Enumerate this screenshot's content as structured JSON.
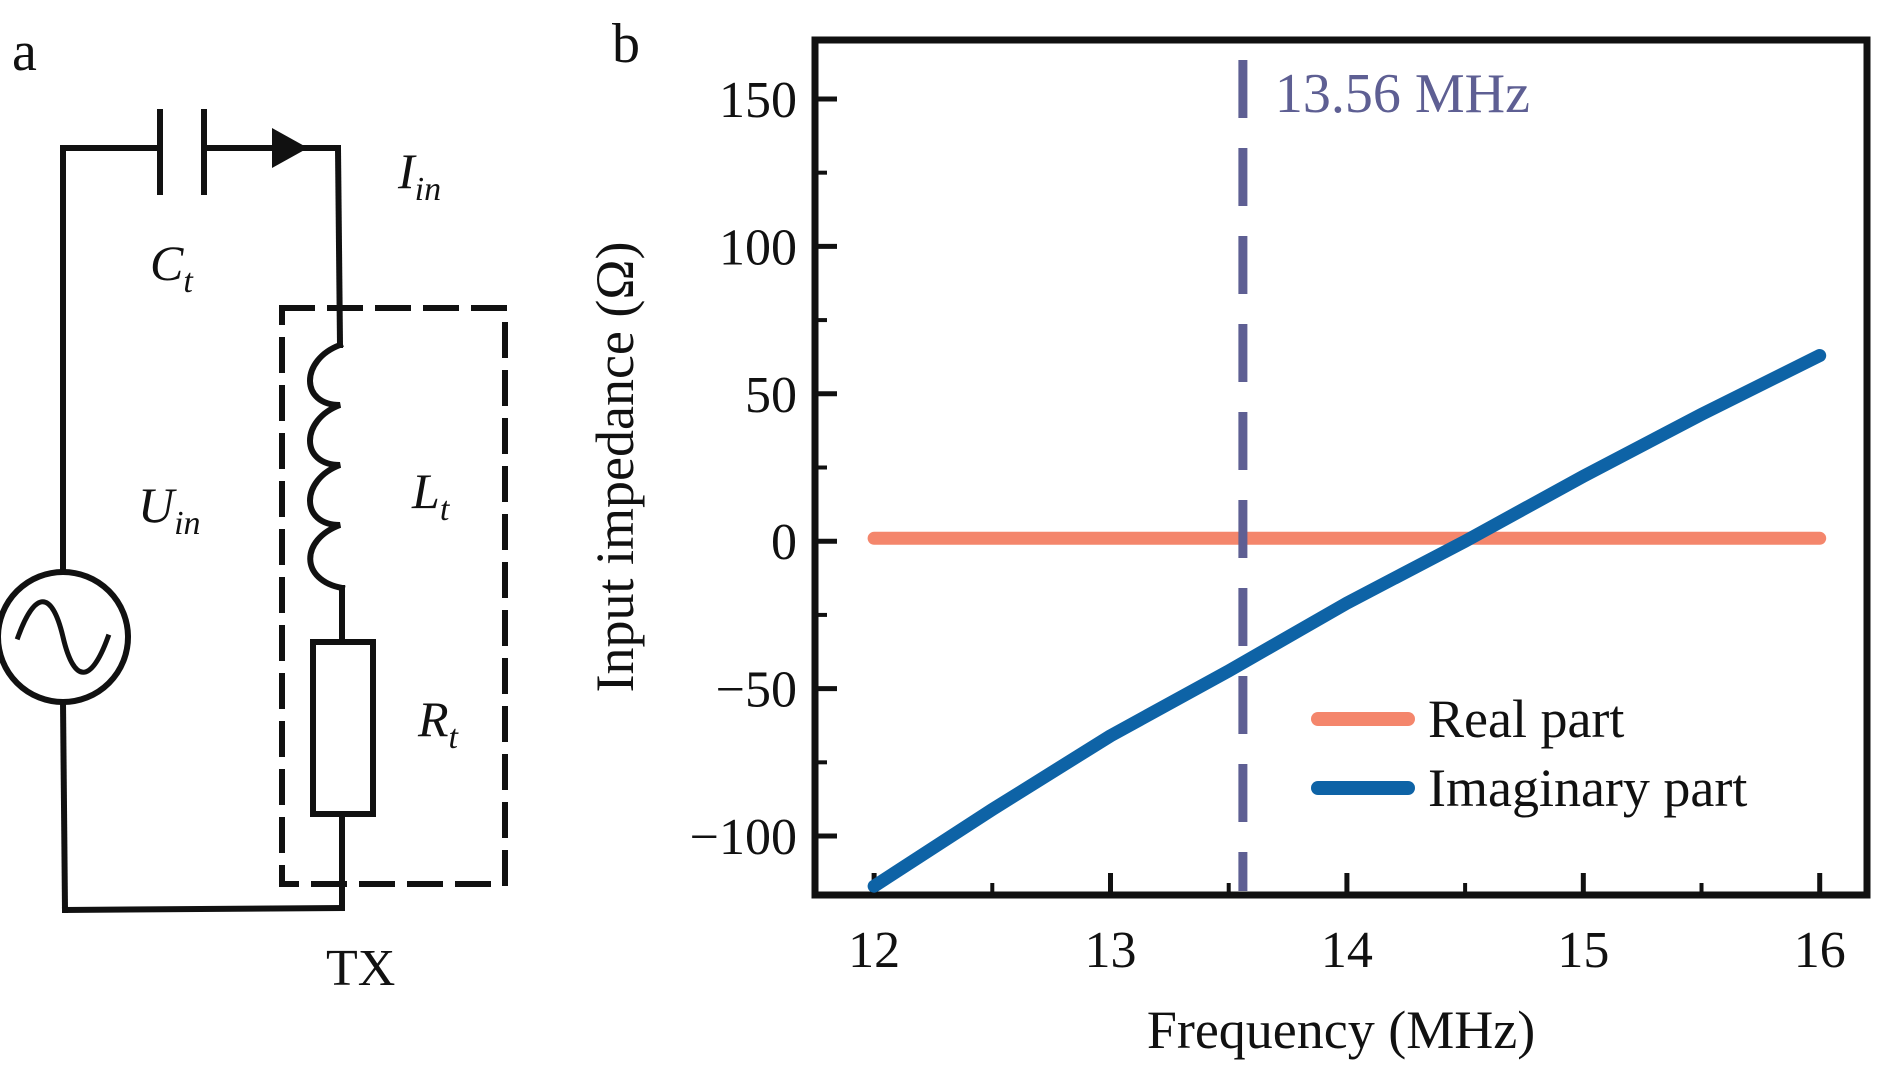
{
  "panels": {
    "a": {
      "label": "a"
    },
    "b": {
      "label": "b"
    }
  },
  "circuit": {
    "capacitor": {
      "symbol": "C",
      "subscript": "t"
    },
    "current": {
      "symbol": "I",
      "subscript": "in"
    },
    "source": {
      "symbol": "U",
      "subscript": "in"
    },
    "inductor": {
      "symbol": "L",
      "subscript": "t"
    },
    "resistor": {
      "symbol": "R",
      "subscript": "t"
    },
    "box_label": "TX"
  },
  "chart_data": {
    "type": "line",
    "xlabel": "Frequency (MHz)",
    "ylabel": "Input impedance (Ω)",
    "xlim": [
      11.75,
      16.2
    ],
    "ylim": [
      -120,
      170
    ],
    "xticks": [
      12,
      13,
      14,
      15,
      16
    ],
    "xtick_labels": [
      "12",
      "13",
      "14",
      "15",
      "16"
    ],
    "yticks": [
      -100,
      -50,
      0,
      50,
      100,
      150
    ],
    "ytick_labels": [
      "−100",
      "−50",
      "0",
      "50",
      "100",
      "150"
    ],
    "x_minor_ticks": [
      12.5,
      13.5,
      14.5,
      15.5
    ],
    "y_minor_ticks": [
      -75,
      -25,
      25,
      75,
      125
    ],
    "series": [
      {
        "name": "Real part",
        "color": "#f4866c",
        "x": [
          12,
          13,
          14,
          15,
          16
        ],
        "y": [
          1,
          1,
          1,
          1,
          1
        ]
      },
      {
        "name": "Imaginary part",
        "color": "#0e63a6",
        "x": [
          12,
          12.5,
          13,
          13.5,
          14,
          14.5,
          15,
          15.5,
          16
        ],
        "y": [
          -117,
          -91,
          -66,
          -44,
          -21,
          0,
          22,
          43,
          63
        ]
      }
    ],
    "vline": {
      "x": 13.56,
      "label": "13.56 MHz",
      "color": "#5e5f93"
    },
    "legend_position": "bottom-right"
  }
}
